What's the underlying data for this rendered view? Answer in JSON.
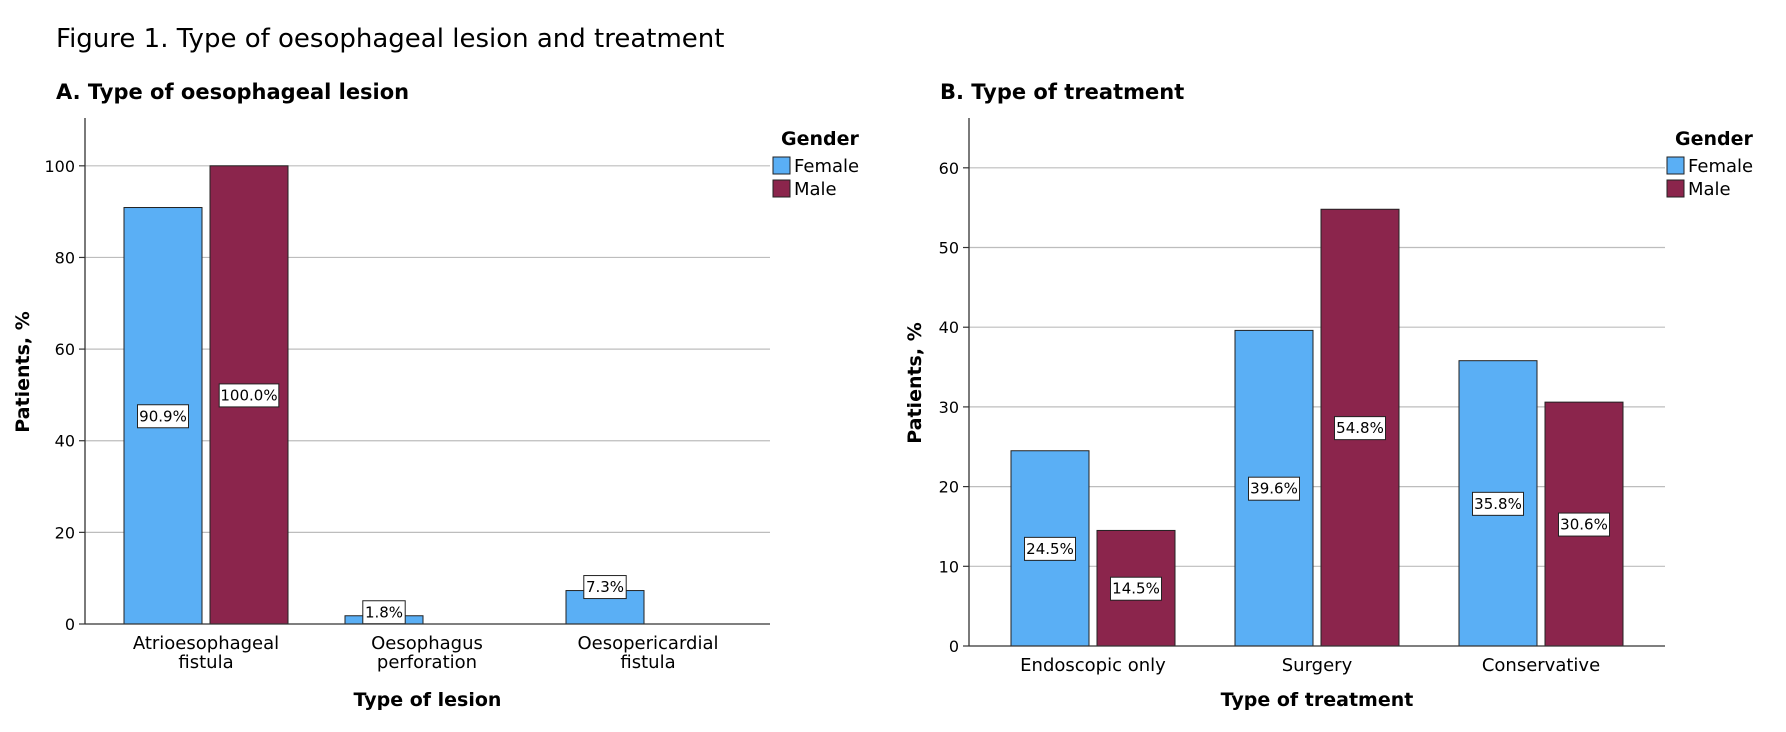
{
  "figure_title": "Figure 1. Type of oesophageal lesion and treatment",
  "colors": {
    "female": "#5aaff5",
    "male": "#8b254c",
    "grid": "#bdbdbd"
  },
  "chart_data": [
    {
      "type": "bar",
      "title": "A. Type of oesophageal lesion",
      "xlabel": "Type of lesion",
      "ylabel": "Patients, %",
      "ylim": [
        0,
        110
      ],
      "yticks": [
        0,
        20,
        40,
        60,
        80,
        100
      ],
      "grid": true,
      "legend": {
        "title": "Gender",
        "placement": "top-right"
      },
      "categories": [
        [
          "Atrioesophageal",
          "fistula"
        ],
        [
          "Oesophagus",
          "perforation"
        ],
        [
          "Oesopericardial",
          "fistula"
        ]
      ],
      "series": [
        {
          "name": "Female",
          "values": [
            90.9,
            1.8,
            7.3
          ],
          "labels": [
            "90.9%",
            "1.8%",
            "7.3%"
          ]
        },
        {
          "name": "Male",
          "values": [
            100.0,
            0,
            0
          ],
          "labels": [
            "100.0%",
            "",
            ""
          ]
        }
      ]
    },
    {
      "type": "bar",
      "title": "B. Type of treatment",
      "xlabel": "Type of treatment",
      "ylabel": "Patients, %",
      "ylim": [
        0,
        66
      ],
      "yticks": [
        0,
        10,
        20,
        30,
        40,
        50,
        60
      ],
      "grid": true,
      "legend": {
        "title": "Gender",
        "placement": "top-right"
      },
      "categories": [
        [
          "Endoscopic only"
        ],
        [
          "Surgery"
        ],
        [
          "Conservative"
        ]
      ],
      "series": [
        {
          "name": "Female",
          "values": [
            24.5,
            39.6,
            35.8
          ],
          "labels": [
            "24.5%",
            "39.6%",
            "35.8%"
          ]
        },
        {
          "name": "Male",
          "values": [
            14.5,
            54.8,
            30.6
          ],
          "labels": [
            "14.5%",
            "54.8%",
            "30.6%"
          ]
        }
      ]
    }
  ]
}
